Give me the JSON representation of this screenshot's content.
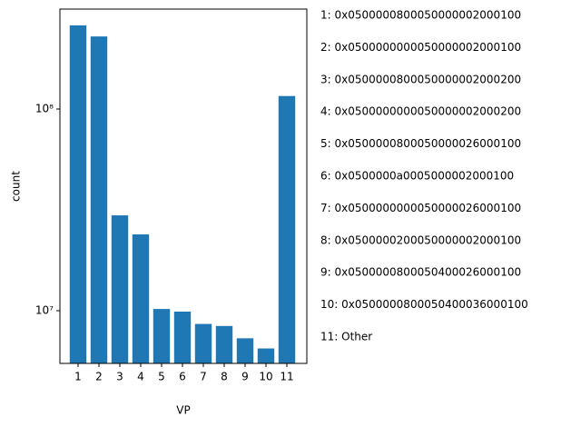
{
  "chart_data": {
    "type": "bar",
    "x_label": "VP",
    "y_label": "count",
    "categories": [
      "1",
      "2",
      "3",
      "4",
      "5",
      "6",
      "7",
      "8",
      "9",
      "10",
      "11"
    ],
    "values": [
      260000000,
      229000000,
      29700000,
      23900000,
      10200000,
      9900000,
      8600000,
      8400000,
      7300000,
      6500000,
      116000000
    ],
    "color": "#1f77b4",
    "log_y": true,
    "ylim": [
      5480000,
      313000000
    ],
    "yticks": [
      {
        "value": 10000000,
        "label": "10⁷"
      },
      {
        "value": 100000000,
        "label": "10⁸"
      }
    ],
    "annotations": [
      "1: 0x0500000800050000002000100",
      "2: 0x0500000000050000002000100",
      "3: 0x0500000800050000002000200",
      "4: 0x0500000000050000002000200",
      "5: 0x0500000800050000026000100",
      "6: 0x0500000a0005000002000100",
      "7: 0x0500000000050000026000100",
      "8: 0x0500000200050000002000100",
      "9: 0x0500000800050400026000100",
      "10: 0x0500000800050400036000100",
      "11: Other"
    ]
  }
}
